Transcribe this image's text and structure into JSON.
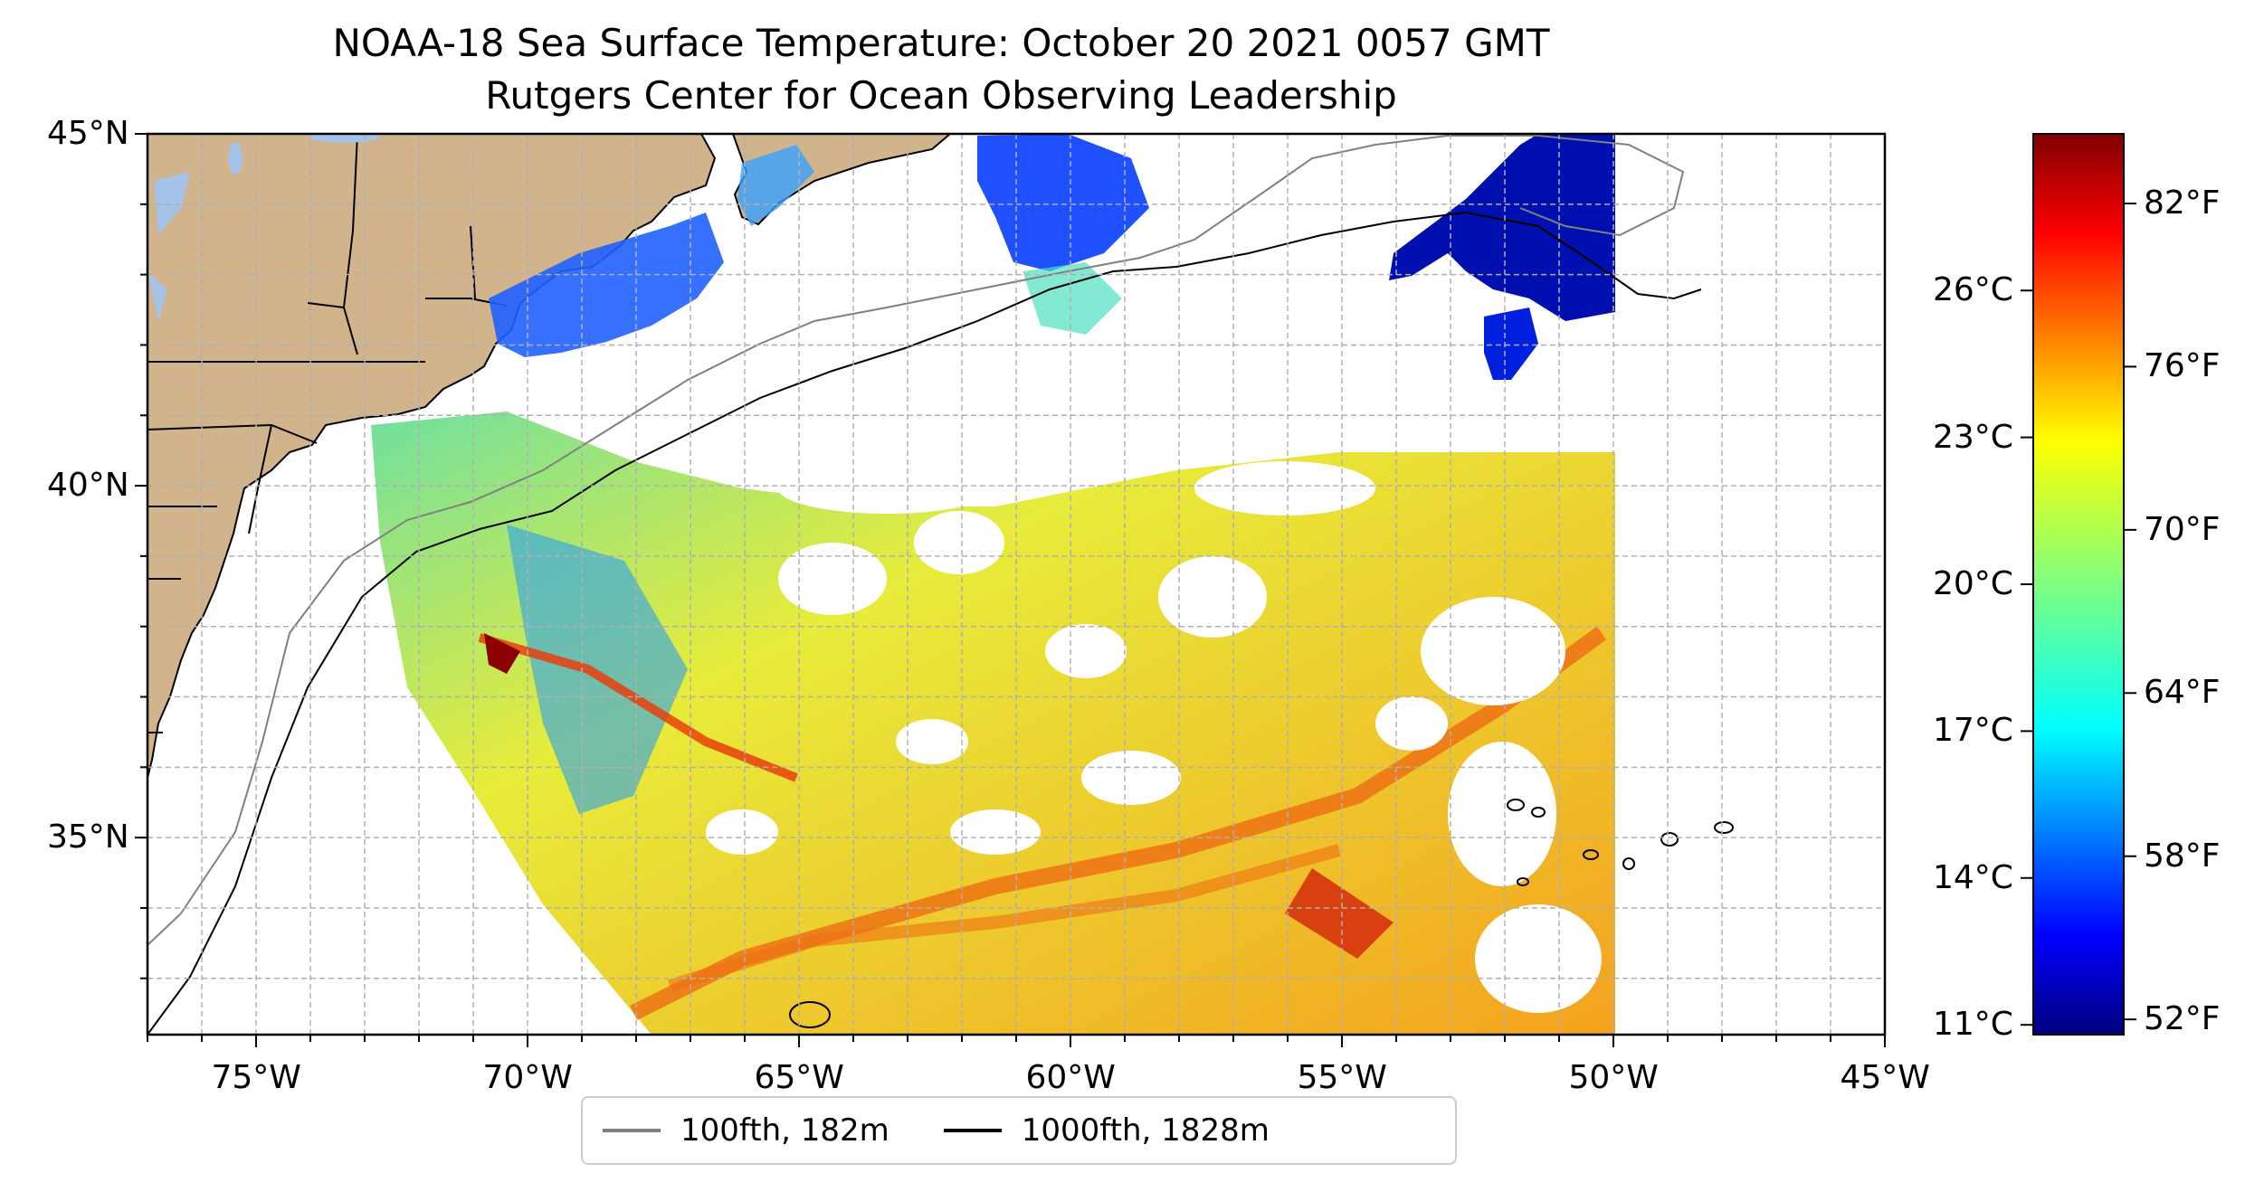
{
  "title": "NOAA-18 Sea Surface Temperature: October 20 2021 0057 GMT",
  "subtitle": "Rutgers Center for Ocean Observing Leadership",
  "map": {
    "lon_range": [
      -77,
      -45
    ],
    "lat_range": [
      32.2,
      45
    ],
    "x_ticks": [
      "75°W",
      "70°W",
      "65°W",
      "60°W",
      "55°W",
      "50°W",
      "45°W"
    ],
    "x_tick_values": [
      -75,
      -70,
      -65,
      -60,
      -55,
      -50,
      -45
    ],
    "y_ticks": [
      "45°N",
      "40°N",
      "35°N"
    ],
    "y_tick_values": [
      45,
      40,
      35
    ],
    "grid": true,
    "land_color": "#d2b48c",
    "water_color": "#a5c3e8"
  },
  "legend": {
    "placement": "bottom-center",
    "items": [
      {
        "label": "100fth, 182m",
        "color": "#808080"
      },
      {
        "label": "1000fth, 1828m",
        "color": "#000000"
      }
    ]
  },
  "colorbar": {
    "colormap": "jet",
    "celsius_range": [
      10.8,
      29.2
    ],
    "celsius_ticks": [
      "26°C",
      "23°C",
      "20°C",
      "17°C",
      "14°C",
      "11°C"
    ],
    "celsius_values": [
      26,
      23,
      20,
      17,
      14,
      11
    ],
    "fahrenheit_ticks": [
      "82°F",
      "76°F",
      "70°F",
      "64°F",
      "58°F",
      "52°F"
    ],
    "fahrenheit_values": [
      82,
      76,
      70,
      64,
      58,
      52
    ]
  }
}
